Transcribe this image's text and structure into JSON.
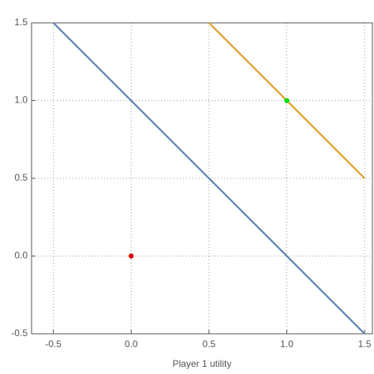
{
  "chart_data": {
    "type": "line",
    "xlabel": "Player 1 utility",
    "xlim": [
      -0.64,
      1.55
    ],
    "ylim": [
      -0.5,
      1.5
    ],
    "xticks": [
      -0.5,
      {
        "value": 0,
        "label": "0.0"
      },
      0.5,
      {
        "value": 1,
        "label": "1.0"
      },
      1.5
    ],
    "yticks": [
      -0.5,
      {
        "value": 0,
        "label": "0.0"
      },
      0.5,
      {
        "value": 1,
        "label": "1.0"
      },
      1.5
    ],
    "grid": true,
    "series": [
      {
        "style": "line",
        "color": "#5e81b5",
        "x": [
          -0.5,
          1.5
        ],
        "values": [
          1.5,
          -0.5
        ]
      },
      {
        "style": "line",
        "color": "#e19c24",
        "x": [
          0.5,
          1.5
        ],
        "values": [
          1.5,
          0.5
        ]
      },
      {
        "style": "point",
        "color": "#dd0000",
        "x": [
          0
        ],
        "values": [
          0
        ]
      },
      {
        "style": "point",
        "color": "#00dd00",
        "x": [
          1
        ],
        "values": [
          1
        ]
      }
    ]
  }
}
